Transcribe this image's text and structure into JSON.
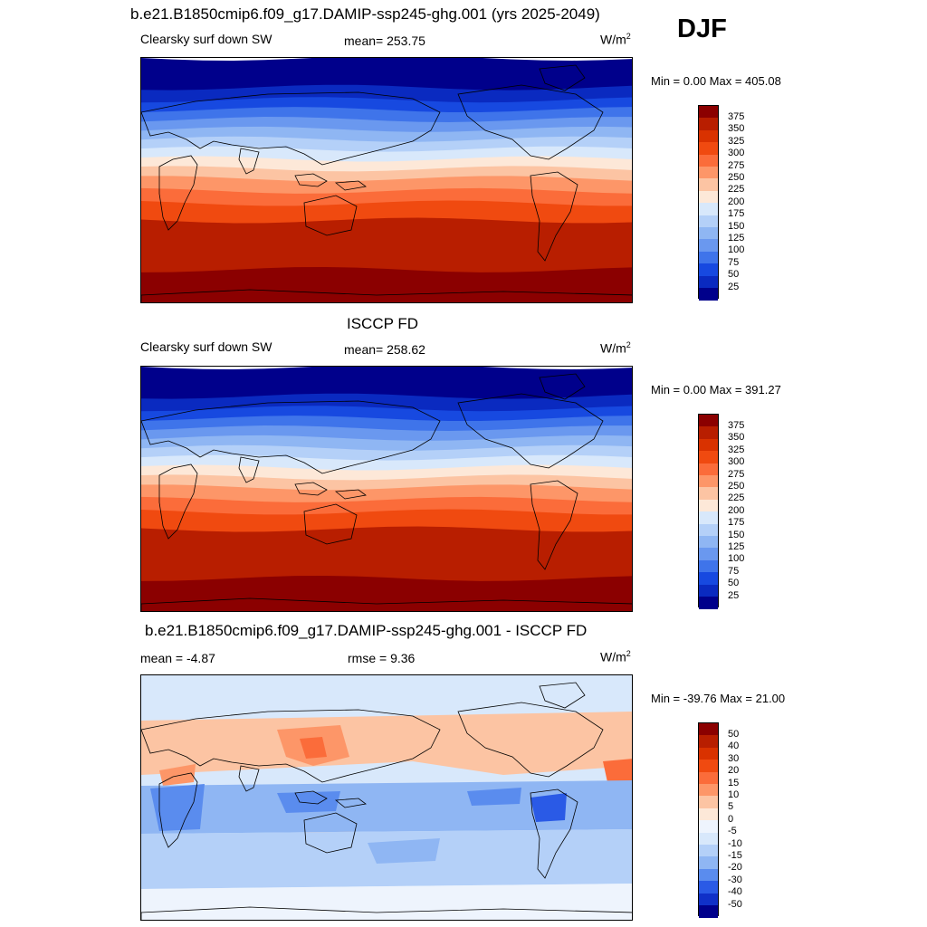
{
  "season": "DJF",
  "panels": [
    {
      "title": "b.e21.B1850cmip6.f09_g17.DAMIP-ssp245-ghg.001 (yrs 2025-2049)",
      "left": "Clearsky surf down SW",
      "center": "mean= 253.75",
      "units": "W/m",
      "units_sup": "2",
      "minmax": "Min =   0.00 Max = 405.08",
      "map_kind": "absolute",
      "colorbar": {
        "ticks": [
          "375",
          "350",
          "325",
          "300",
          "275",
          "250",
          "225",
          "200",
          "175",
          "150",
          "125",
          "100",
          "75",
          "50",
          "25"
        ],
        "colors": [
          "#8b0000",
          "#b81e00",
          "#d93200",
          "#f04a10",
          "#fb6c3a",
          "#fd9668",
          "#fcc4a3",
          "#fde8d8",
          "#d8e8fb",
          "#b4d0f8",
          "#8fb6f3",
          "#6a98ef",
          "#3f74ea",
          "#1749e0",
          "#0a2ac0",
          "#00008b"
        ]
      }
    },
    {
      "title": "ISCCP FD",
      "left": "Clearsky surf down SW",
      "center": "mean= 258.62",
      "units": "W/m",
      "units_sup": "2",
      "minmax": "Min =   0.00 Max = 391.27",
      "map_kind": "absolute",
      "colorbar": {
        "ticks": [
          "375",
          "350",
          "325",
          "300",
          "275",
          "250",
          "225",
          "200",
          "175",
          "150",
          "125",
          "100",
          "75",
          "50",
          "25"
        ],
        "colors": [
          "#8b0000",
          "#b81e00",
          "#d93200",
          "#f04a10",
          "#fb6c3a",
          "#fd9668",
          "#fcc4a3",
          "#fde8d8",
          "#d8e8fb",
          "#b4d0f8",
          "#8fb6f3",
          "#6a98ef",
          "#3f74ea",
          "#1749e0",
          "#0a2ac0",
          "#00008b"
        ]
      }
    },
    {
      "title": "b.e21.B1850cmip6.f09_g17.DAMIP-ssp245-ghg.001 - ISCCP FD",
      "left": "mean =  -4.87",
      "center": "rmse =   9.36",
      "units": "W/m",
      "units_sup": "2",
      "minmax": "Min = -39.76 Max =  21.00",
      "map_kind": "difference",
      "colorbar": {
        "ticks": [
          "50",
          "40",
          "30",
          "20",
          "15",
          "10",
          "5",
          "0",
          "-5",
          "-10",
          "-15",
          "-20",
          "-30",
          "-40",
          "-50"
        ],
        "colors": [
          "#8b0000",
          "#b81e00",
          "#d93200",
          "#f04a10",
          "#fb6c3a",
          "#fd9668",
          "#fcc4a3",
          "#fde8d8",
          "#eef4fd",
          "#d8e8fb",
          "#b4d0f8",
          "#8fb6f3",
          "#5a8cee",
          "#2a5ae6",
          "#1030c8",
          "#00008b"
        ]
      }
    }
  ]
}
